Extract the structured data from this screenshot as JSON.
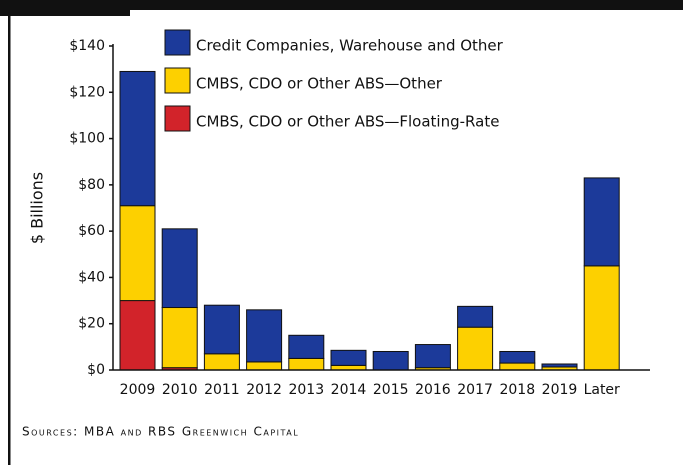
{
  "chart_data": {
    "type": "stacked_bar",
    "y_label": "$ Billions",
    "source": "Sources: MBA and RBS Greenwich Capital",
    "categories": [
      "2009",
      "2010",
      "2011",
      "2012",
      "2013",
      "2014",
      "2015",
      "2016",
      "2017",
      "2018",
      "2019",
      "Later"
    ],
    "series": [
      {
        "name": "CMBS, CDO or Other ABS—Floating-Rate",
        "color": "#d2232a",
        "values": [
          30,
          1,
          0,
          0,
          0,
          0,
          0,
          0,
          0,
          0,
          0,
          0
        ]
      },
      {
        "name": "CMBS, CDO or Other ABS—Other",
        "color": "#fdd000",
        "values": [
          41,
          26,
          7,
          3.5,
          5,
          2,
          0,
          1,
          18.5,
          3,
          1.3,
          45
        ]
      },
      {
        "name": "Credit Companies, Warehouse and Other",
        "color": "#1c3a9a",
        "values": [
          58,
          34,
          21,
          22.5,
          10,
          6.5,
          8,
          10,
          9,
          5,
          1.3,
          38
        ]
      }
    ],
    "ylim": [
      0,
      140
    ],
    "yticks": [
      {
        "value": 0,
        "label": "$0"
      },
      {
        "value": 20,
        "label": "$20"
      },
      {
        "value": 40,
        "label": "$40"
      },
      {
        "value": 60,
        "label": "$60"
      },
      {
        "value": 80,
        "label": "$80"
      },
      {
        "value": 100,
        "label": "$100"
      },
      {
        "value": 120,
        "label": "$120"
      },
      {
        "value": 140,
        "label": "$140"
      }
    ]
  }
}
